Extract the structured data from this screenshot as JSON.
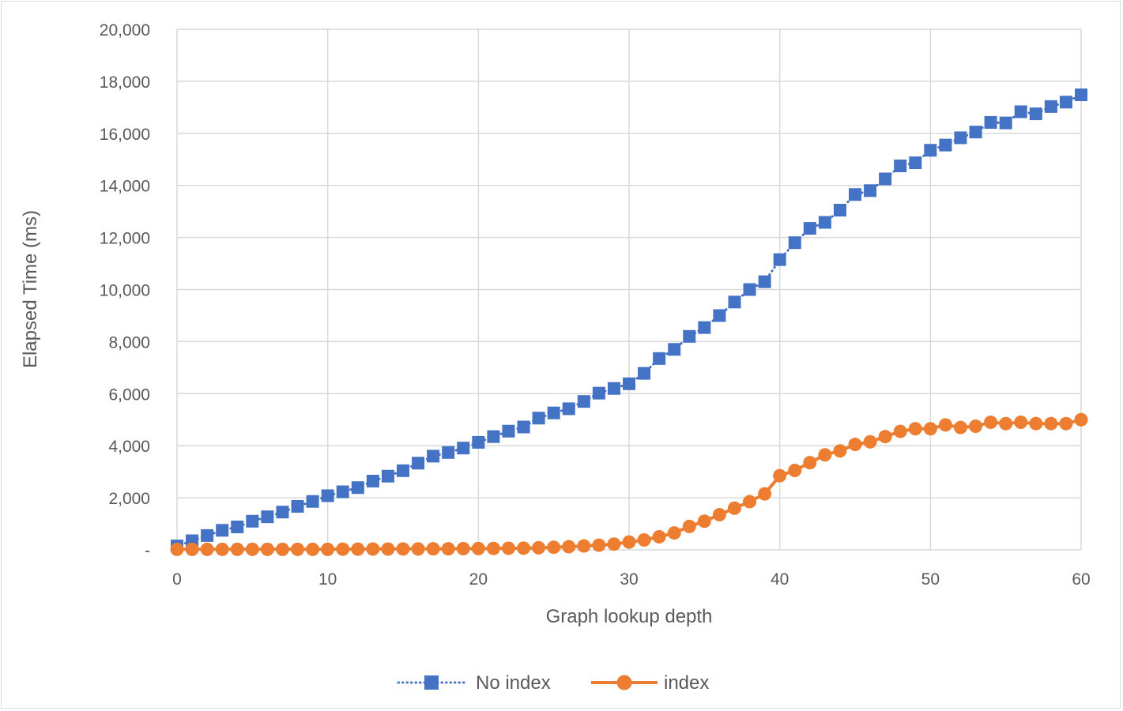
{
  "chart_data": {
    "type": "line",
    "title": "",
    "xlabel": "Graph lookup depth",
    "ylabel": "Elapsed Time (ms)",
    "xlim": [
      0,
      60
    ],
    "ylim": [
      0,
      20000
    ],
    "x_ticks": [
      0,
      10,
      20,
      30,
      40,
      50,
      60
    ],
    "y_ticks": [
      0,
      2000,
      4000,
      6000,
      8000,
      10000,
      12000,
      14000,
      16000,
      18000,
      20000
    ],
    "x_tick_labels": [
      "0",
      "10",
      "20",
      "30",
      "40",
      "50",
      "60"
    ],
    "y_tick_labels": [
      "-",
      "2,000",
      "4,000",
      "6,000",
      "8,000",
      "10,000",
      "12,000",
      "14,000",
      "16,000",
      "18,000",
      "20,000"
    ],
    "grid": true,
    "legend_position": "bottom",
    "x": [
      0,
      1,
      2,
      3,
      4,
      5,
      6,
      7,
      8,
      9,
      10,
      11,
      12,
      13,
      14,
      15,
      16,
      17,
      18,
      19,
      20,
      21,
      22,
      23,
      24,
      25,
      26,
      27,
      28,
      29,
      30,
      31,
      32,
      33,
      34,
      35,
      36,
      37,
      38,
      39,
      40,
      41,
      42,
      43,
      44,
      45,
      46,
      47,
      48,
      49,
      50,
      51,
      52,
      53,
      54,
      55,
      56,
      57,
      58,
      59,
      60
    ],
    "series": [
      {
        "name": "No index",
        "color": "#4472c4",
        "line_style": "dotted",
        "marker": "square",
        "values": [
          150,
          350,
          550,
          750,
          880,
          1100,
          1270,
          1450,
          1670,
          1860,
          2080,
          2230,
          2390,
          2640,
          2830,
          3040,
          3330,
          3600,
          3740,
          3910,
          4130,
          4350,
          4560,
          4720,
          5060,
          5260,
          5420,
          5700,
          6020,
          6200,
          6380,
          6780,
          7350,
          7700,
          8200,
          8540,
          9000,
          9520,
          10000,
          10300,
          11150,
          11800,
          12350,
          12580,
          13050,
          13650,
          13800,
          14250,
          14750,
          14870,
          15350,
          15550,
          15830,
          16050,
          16420,
          16400,
          16830,
          16750,
          17030,
          17200,
          17480
        ]
      },
      {
        "name": "index",
        "color": "#ed7d31",
        "line_style": "solid",
        "marker": "circle",
        "values": [
          20,
          20,
          20,
          20,
          20,
          20,
          20,
          20,
          20,
          20,
          20,
          25,
          25,
          30,
          30,
          35,
          35,
          40,
          40,
          45,
          50,
          55,
          60,
          65,
          80,
          100,
          120,
          150,
          180,
          220,
          300,
          380,
          500,
          650,
          900,
          1100,
          1350,
          1600,
          1850,
          2150,
          2850,
          3050,
          3350,
          3650,
          3800,
          4050,
          4150,
          4350,
          4550,
          4650,
          4650,
          4800,
          4700,
          4750,
          4900,
          4850,
          4900,
          4850,
          4850,
          4850,
          5000
        ]
      }
    ]
  }
}
